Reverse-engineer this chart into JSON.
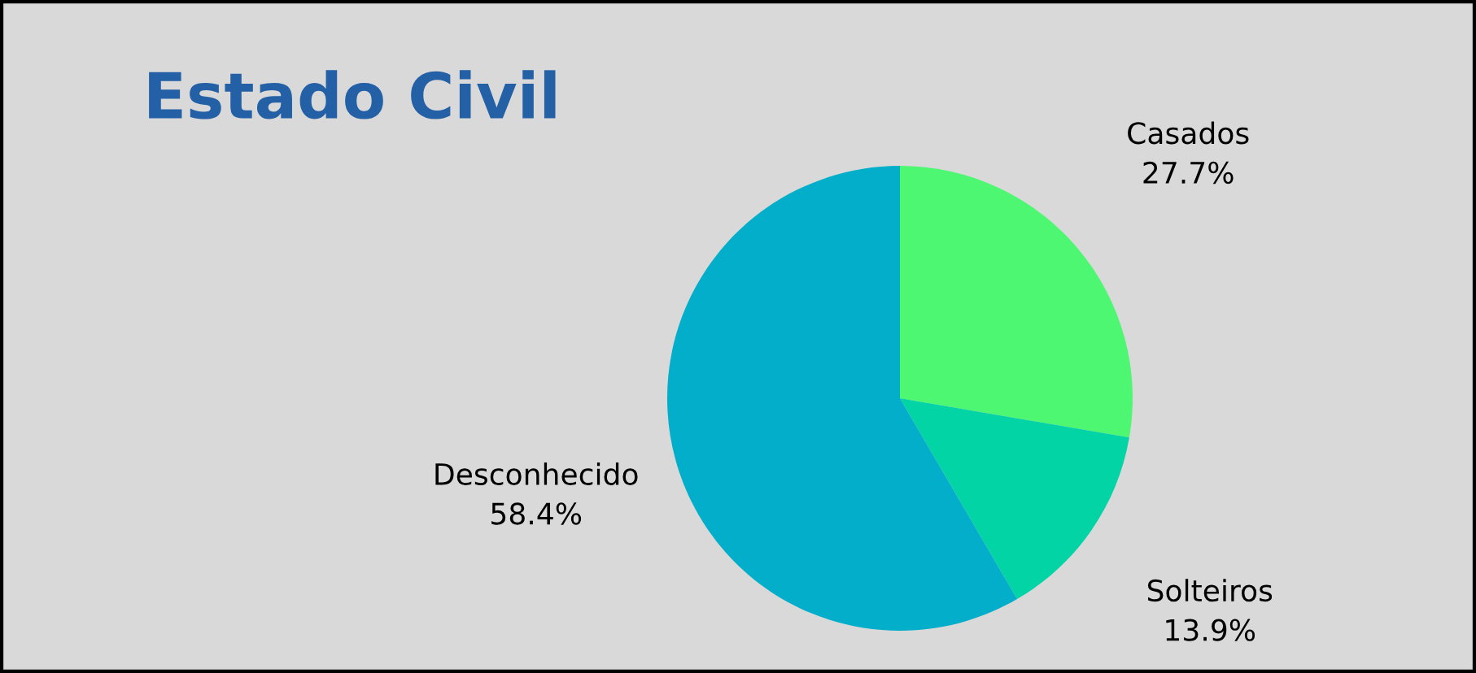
{
  "chart_data": {
    "type": "pie",
    "title": "Estado Civil",
    "categories": [
      "Casados",
      "Solteiros",
      "Desconhecido"
    ],
    "values": [
      27.7,
      13.9,
      58.4
    ],
    "colors": [
      "#4ef772",
      "#03d4a6",
      "#02aec9"
    ],
    "value_labels": [
      "27.7%",
      "13.9%",
      "58.4%"
    ]
  }
}
